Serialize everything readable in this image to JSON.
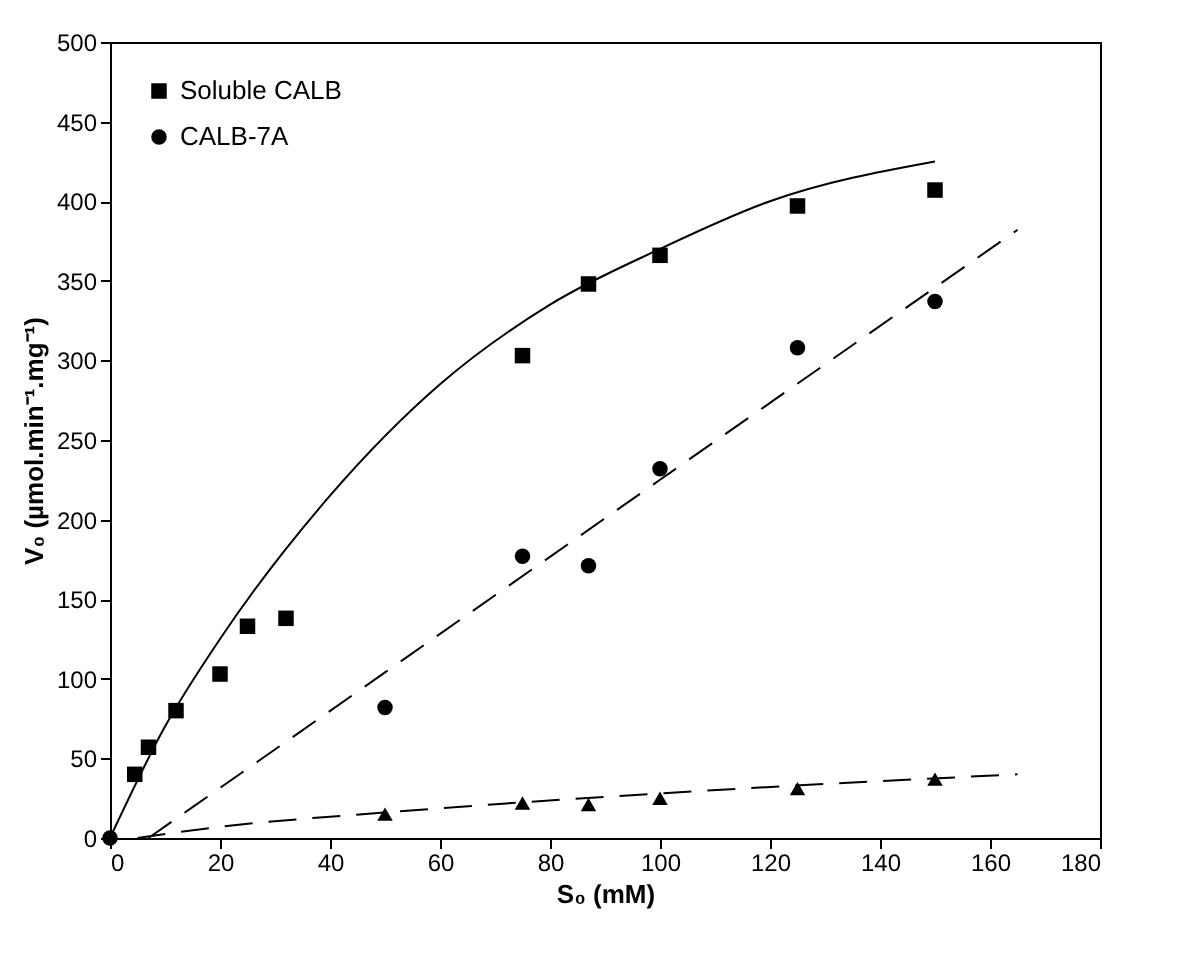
{
  "chart_data": {
    "type": "scatter",
    "xlabel": "S₀ (mM)",
    "ylabel": "V₀ (µmol.min⁻¹.mg⁻¹)",
    "xlim": [
      0,
      180
    ],
    "ylim": [
      0,
      500
    ],
    "xticks": [
      0,
      20,
      40,
      60,
      80,
      100,
      120,
      140,
      160,
      180
    ],
    "yticks": [
      0,
      50,
      100,
      150,
      200,
      250,
      300,
      350,
      400,
      450,
      500
    ],
    "grid": false,
    "legend": "top left",
    "series": [
      {
        "name": "Soluble CALB",
        "marker": "square",
        "color": "#000000",
        "x": [
          4.5,
          7,
          12,
          20,
          25,
          32,
          75,
          87,
          100,
          125,
          150
        ],
        "values": [
          40,
          57,
          80,
          103,
          133,
          138,
          303,
          348,
          366,
          397,
          407
        ]
      },
      {
        "name": "CALB-7A",
        "marker": "circle",
        "color": "#000000",
        "x": [
          0,
          50,
          75,
          87,
          100,
          125,
          150
        ],
        "values": [
          0,
          82,
          177,
          171,
          232,
          308,
          337
        ]
      },
      {
        "marker": "triangle",
        "color": "#000000",
        "x": [
          50,
          75,
          87,
          100,
          125,
          150
        ],
        "values": [
          15,
          22,
          21,
          25,
          31,
          37
        ]
      },
      {
        "type": "line",
        "line_style": "solid",
        "color": "#000000",
        "x": [
          0,
          10,
          20,
          40,
          60,
          80,
          100,
          120,
          150
        ],
        "values": [
          0,
          70,
          125,
          215,
          285,
          335,
          370,
          400,
          425
        ]
      },
      {
        "type": "line",
        "line_style": "dashed",
        "color": "#000000",
        "x": [
          7,
          50,
          100,
          165
        ],
        "values": [
          0,
          104,
          225,
          382
        ]
      },
      {
        "type": "line",
        "line_style": "dashed",
        "color": "#000000",
        "x": [
          5,
          20,
          50,
          100,
          165
        ],
        "values": [
          0,
          7,
          16,
          28,
          40
        ]
      }
    ]
  }
}
